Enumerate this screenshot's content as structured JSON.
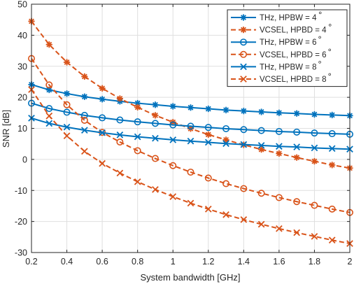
{
  "chart_data": {
    "type": "line",
    "xlabel": "System bandwidth [GHz]",
    "ylabel": "SNR [dB]",
    "xlim": [
      0.2,
      2
    ],
    "ylim": [
      -30,
      50
    ],
    "xticks": [
      0.2,
      0.4,
      0.6,
      0.8,
      1,
      1.2,
      1.4,
      1.6,
      1.8,
      2
    ],
    "xtick_labels": [
      "0.2",
      "0.4",
      "0.6",
      "0.8",
      "1",
      "1.2",
      "1.4",
      "1.6",
      "1.8",
      "2"
    ],
    "yticks": [
      -30,
      -20,
      -10,
      0,
      10,
      20,
      30,
      40,
      50
    ],
    "ytick_labels": [
      "-30",
      "-20",
      "-10",
      "0",
      "10",
      "20",
      "30",
      "40",
      "50"
    ],
    "grid": true,
    "legend_position": "top-right",
    "x": [
      0.2,
      0.3,
      0.4,
      0.5,
      0.6,
      0.7,
      0.8,
      0.9,
      1.0,
      1.1,
      1.2,
      1.3,
      1.4,
      1.5,
      1.6,
      1.7,
      1.8,
      1.9,
      2.0
    ],
    "series": [
      {
        "name": "THz, HPBW = 4",
        "degree": "∘",
        "color": "#0072BD",
        "dash": "solid",
        "marker": "asterisk",
        "values": [
          24.1,
          22.4,
          21.2,
          20.2,
          19.4,
          18.7,
          18.1,
          17.6,
          17.1,
          16.7,
          16.3,
          15.9,
          15.6,
          15.3,
          15.0,
          14.8,
          14.5,
          14.3,
          14.1
        ]
      },
      {
        "name": "VCSEL, HPBD = 4",
        "degree": "∘",
        "color": "#D95319",
        "dash": "dashed",
        "marker": "asterisk",
        "values": [
          44.5,
          37.0,
          31.3,
          26.7,
          22.9,
          19.6,
          16.8,
          14.2,
          12.0,
          9.9,
          8.0,
          6.3,
          4.7,
          3.2,
          1.9,
          0.6,
          -0.6,
          -1.8,
          -2.8
        ]
      },
      {
        "name": "THz, HPBW = 6",
        "degree": "∘",
        "color": "#0072BD",
        "dash": "solid",
        "marker": "circle",
        "values": [
          18.1,
          16.4,
          15.2,
          14.2,
          13.4,
          12.7,
          12.1,
          11.6,
          11.1,
          10.7,
          10.3,
          9.9,
          9.6,
          9.3,
          9.0,
          8.8,
          8.5,
          8.3,
          8.1
        ]
      },
      {
        "name": "VCSEL, HPBD = 6",
        "degree": "∘",
        "color": "#D95319",
        "dash": "dashed",
        "marker": "circle",
        "values": [
          32.5,
          24.0,
          17.6,
          12.6,
          8.7,
          5.6,
          2.8,
          0.3,
          -2.0,
          -4.1,
          -6.0,
          -7.8,
          -9.4,
          -10.9,
          -12.3,
          -13.6,
          -14.8,
          -16.0,
          -17.1
        ]
      },
      {
        "name": "THz, HPBW = 8",
        "degree": "∘",
        "color": "#0072BD",
        "dash": "solid",
        "marker": "x",
        "values": [
          13.3,
          11.6,
          10.4,
          9.4,
          8.6,
          7.9,
          7.3,
          6.8,
          6.3,
          5.9,
          5.5,
          5.1,
          4.8,
          4.5,
          4.2,
          4.0,
          3.7,
          3.5,
          3.3
        ]
      },
      {
        "name": "VCSEL, HPBD = 8",
        "degree": "∘",
        "color": "#D95319",
        "dash": "dashed",
        "marker": "x",
        "values": [
          22.5,
          14.0,
          7.6,
          2.6,
          -1.3,
          -4.4,
          -7.2,
          -9.7,
          -12.0,
          -14.1,
          -16.0,
          -17.8,
          -19.4,
          -20.9,
          -22.3,
          -23.6,
          -24.8,
          -26.0,
          -27.1
        ]
      }
    ]
  }
}
